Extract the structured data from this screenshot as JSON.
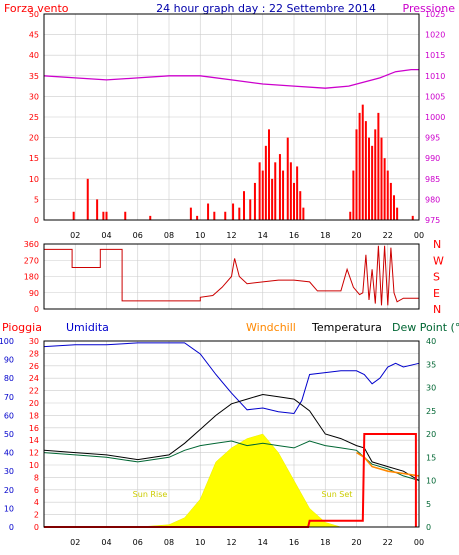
{
  "header": {
    "left_label": "Forza vento",
    "title": "24 hour graph day : 22 Settembre 2014",
    "right_label": "Pressione"
  },
  "bottom_header": {
    "rain": "Pioggia",
    "humidity": "Umidita",
    "windchill": "Windchill",
    "temperature": "Temperatura",
    "dewpoint": "Dew Point (°C"
  },
  "annotations": {
    "sunrise": "Sun Rise",
    "sunset": "Sun Set"
  },
  "colors": {
    "wind": "#ff0000",
    "gust": "#ff0000",
    "avg_wind_blue": "#0000ff",
    "avg_wind_green": "#008000",
    "pressure": "#cc00cc",
    "direction": "#cc0000",
    "humidity": "#0000cc",
    "temperature": "#000000",
    "dewpoint": "#006633",
    "windchill": "#ff8800",
    "rain": "#ff0000",
    "solar": "#ffff00",
    "grid": "#cccccc"
  },
  "chart_data": [
    {
      "type": "bar",
      "panel": "wind-pressure",
      "x_ticks": [
        "02",
        "04",
        "06",
        "08",
        "10",
        "12",
        "14",
        "16",
        "18",
        "20",
        "22",
        "00"
      ],
      "y_left_ticks": [
        0,
        5,
        10,
        15,
        20,
        25,
        30,
        35,
        40,
        45,
        50
      ],
      "y_left_range": [
        0,
        50
      ],
      "y_right_ticks": [
        975,
        980,
        985,
        990,
        995,
        1000,
        1005,
        1010,
        1015,
        1020,
        1025
      ],
      "y_right_range": [
        975,
        1025
      ],
      "series": [
        {
          "name": "Forza vento",
          "type": "bar",
          "points": [
            [
              1.9,
              2
            ],
            [
              2.8,
              10
            ],
            [
              3.4,
              5
            ],
            [
              3.8,
              2
            ],
            [
              4.0,
              2
            ],
            [
              5.2,
              2
            ],
            [
              6.8,
              1
            ],
            [
              9.4,
              3
            ],
            [
              9.8,
              1
            ],
            [
              10.5,
              4
            ],
            [
              10.9,
              2
            ],
            [
              11.6,
              2
            ],
            [
              12.1,
              4
            ],
            [
              12.5,
              3
            ],
            [
              12.8,
              7
            ],
            [
              13.2,
              5
            ],
            [
              13.5,
              9
            ],
            [
              13.8,
              14
            ],
            [
              14.0,
              12
            ],
            [
              14.2,
              18
            ],
            [
              14.4,
              22
            ],
            [
              14.6,
              10
            ],
            [
              14.8,
              14
            ],
            [
              15.1,
              16
            ],
            [
              15.3,
              12
            ],
            [
              15.6,
              20
            ],
            [
              15.8,
              14
            ],
            [
              16.0,
              9
            ],
            [
              16.2,
              13
            ],
            [
              16.4,
              7
            ],
            [
              16.6,
              3
            ],
            [
              19.6,
              2
            ],
            [
              19.8,
              12
            ],
            [
              20.0,
              22
            ],
            [
              20.2,
              26
            ],
            [
              20.4,
              28
            ],
            [
              20.6,
              24
            ],
            [
              20.8,
              20
            ],
            [
              21.0,
              18
            ],
            [
              21.2,
              22
            ],
            [
              21.4,
              26
            ],
            [
              21.6,
              20
            ],
            [
              21.8,
              15
            ],
            [
              22.0,
              12
            ],
            [
              22.2,
              9
            ],
            [
              22.4,
              6
            ],
            [
              22.6,
              3
            ],
            [
              23.6,
              1
            ]
          ]
        },
        {
          "name": "Pressione",
          "type": "line",
          "points": [
            [
              0,
              1010
            ],
            [
              2,
              1009.5
            ],
            [
              4,
              1009
            ],
            [
              6,
              1009.5
            ],
            [
              8,
              1010
            ],
            [
              10,
              1010
            ],
            [
              12,
              1009
            ],
            [
              14,
              1008
            ],
            [
              16,
              1007.5
            ],
            [
              18,
              1007
            ],
            [
              19.5,
              1007.5
            ],
            [
              20.5,
              1008.5
            ],
            [
              21.5,
              1009.5
            ],
            [
              22.5,
              1011
            ],
            [
              23.5,
              1011.5
            ],
            [
              24,
              1011.5
            ]
          ]
        }
      ]
    },
    {
      "type": "line",
      "panel": "wind-direction",
      "y_left_ticks": [
        0,
        90,
        180,
        270,
        360
      ],
      "y_left_range": [
        0,
        360
      ],
      "y_right_ticks": [
        "N",
        "W",
        "S",
        "E",
        "N"
      ],
      "series": [
        {
          "name": "direction",
          "points": [
            [
              0,
              330
            ],
            [
              1.8,
              330
            ],
            [
              1.8,
              230
            ],
            [
              3.6,
              230
            ],
            [
              3.6,
              330
            ],
            [
              5.0,
              330
            ],
            [
              5.0,
              45
            ],
            [
              10.0,
              45
            ],
            [
              10.0,
              65
            ],
            [
              10.8,
              75
            ],
            [
              11.4,
              120
            ],
            [
              12.0,
              180
            ],
            [
              12.2,
              280
            ],
            [
              12.5,
              180
            ],
            [
              13.0,
              140
            ],
            [
              14.0,
              150
            ],
            [
              15.0,
              160
            ],
            [
              16.0,
              160
            ],
            [
              17.0,
              150
            ],
            [
              17.5,
              100
            ],
            [
              19.0,
              100
            ],
            [
              19.4,
              220
            ],
            [
              19.8,
              120
            ],
            [
              20.2,
              80
            ],
            [
              20.4,
              90
            ],
            [
              20.6,
              300
            ],
            [
              20.8,
              50
            ],
            [
              21.0,
              220
            ],
            [
              21.2,
              30
            ],
            [
              21.4,
              350
            ],
            [
              21.6,
              20
            ],
            [
              21.8,
              350
            ],
            [
              22.0,
              20
            ],
            [
              22.2,
              340
            ],
            [
              22.4,
              90
            ],
            [
              22.6,
              40
            ],
            [
              23.0,
              60
            ],
            [
              24,
              60
            ]
          ]
        }
      ]
    },
    {
      "type": "line",
      "panel": "temperature-humidity-rain",
      "y_rain_ticks": [
        0,
        2,
        4,
        6,
        8,
        10,
        12,
        14,
        16,
        18,
        20,
        22,
        24,
        26,
        28,
        30
      ],
      "y_rain_range": [
        0,
        30
      ],
      "y_humidity_ticks": [
        0,
        10,
        20,
        30,
        40,
        50,
        60,
        70,
        80,
        90,
        100
      ],
      "y_humidity_range": [
        0,
        100
      ],
      "y_temp_ticks": [
        0,
        5,
        10,
        15,
        20,
        25,
        30,
        35,
        40
      ],
      "y_temp_range": [
        0,
        40
      ],
      "series": [
        {
          "name": "Umidita",
          "points": [
            [
              0,
              97
            ],
            [
              2,
              98
            ],
            [
              4,
              98
            ],
            [
              6,
              99
            ],
            [
              8,
              99
            ],
            [
              9,
              99
            ],
            [
              10,
              93
            ],
            [
              11,
              82
            ],
            [
              12,
              72
            ],
            [
              13,
              63
            ],
            [
              14,
              64
            ],
            [
              15,
              62
            ],
            [
              16,
              61
            ],
            [
              16.5,
              68
            ],
            [
              17,
              82
            ],
            [
              18,
              83
            ],
            [
              19,
              84
            ],
            [
              20,
              84
            ],
            [
              20.5,
              82
            ],
            [
              21,
              77
            ],
            [
              21.5,
              80
            ],
            [
              22,
              86
            ],
            [
              22.5,
              88
            ],
            [
              23,
              86
            ],
            [
              24,
              88
            ]
          ]
        },
        {
          "name": "Temperatura",
          "points": [
            [
              0,
              16.5
            ],
            [
              2,
              16
            ],
            [
              4,
              15.5
            ],
            [
              6,
              14.5
            ],
            [
              8,
              15.5
            ],
            [
              9,
              18
            ],
            [
              10,
              21
            ],
            [
              11,
              24
            ],
            [
              12,
              26.5
            ],
            [
              13,
              27.5
            ],
            [
              14,
              28.5
            ],
            [
              15,
              28
            ],
            [
              16,
              27.5
            ],
            [
              17,
              25
            ],
            [
              18,
              20
            ],
            [
              19,
              19
            ],
            [
              20,
              17.5
            ],
            [
              20.5,
              17
            ],
            [
              21,
              14
            ],
            [
              22,
              13
            ],
            [
              23,
              12
            ],
            [
              24,
              10
            ]
          ]
        },
        {
          "name": "Dew Point",
          "points": [
            [
              0,
              16
            ],
            [
              2,
              15.5
            ],
            [
              4,
              15
            ],
            [
              6,
              14
            ],
            [
              8,
              15
            ],
            [
              9,
              16.5
            ],
            [
              10,
              17.5
            ],
            [
              11,
              18
            ],
            [
              12,
              18.5
            ],
            [
              13,
              17.5
            ],
            [
              14,
              18
            ],
            [
              15,
              17.5
            ],
            [
              16,
              17
            ],
            [
              17,
              18.5
            ],
            [
              18,
              17.5
            ],
            [
              19,
              17
            ],
            [
              20,
              16.5
            ],
            [
              21,
              13.5
            ],
            [
              22,
              12.5
            ],
            [
              23,
              11
            ],
            [
              24,
              10
            ]
          ]
        },
        {
          "name": "Windchill",
          "points": [
            [
              20,
              16
            ],
            [
              20.5,
              15
            ],
            [
              21,
              13
            ],
            [
              21.5,
              12.5
            ],
            [
              22,
              12
            ],
            [
              23,
              11.5
            ],
            [
              24,
              11
            ]
          ]
        },
        {
          "name": "Pioggia",
          "points": [
            [
              0,
              0
            ],
            [
              16.9,
              0
            ],
            [
              17.0,
              1
            ],
            [
              20.4,
              1
            ],
            [
              20.5,
              15
            ],
            [
              23.8,
              15
            ],
            [
              23.8,
              0
            ]
          ]
        },
        {
          "name": "solar",
          "points": [
            [
              6,
              0
            ],
            [
              8,
              0.5
            ],
            [
              9,
              2
            ],
            [
              10,
              6
            ],
            [
              11,
              14
            ],
            [
              12,
              17
            ],
            [
              13,
              19
            ],
            [
              14,
              20
            ],
            [
              14.5,
              18
            ],
            [
              15,
              16
            ],
            [
              16,
              10
            ],
            [
              17,
              4
            ],
            [
              18,
              1
            ],
            [
              19,
              0
            ]
          ]
        }
      ]
    }
  ]
}
